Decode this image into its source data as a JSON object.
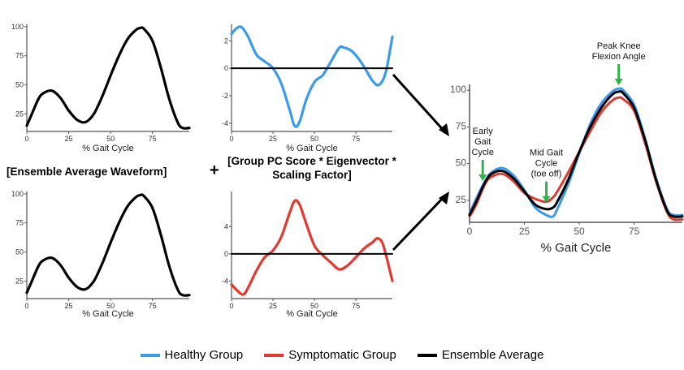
{
  "labels": {
    "ensemble_average": "[Ensemble Average Waveform]",
    "plus": "+",
    "group_pc_line1": "[Group PC Score * Eigenvector *",
    "group_pc_line2": "Scaling Factor]"
  },
  "colors": {
    "healthy": "#3a9bea",
    "symptomatic": "#e23a30",
    "ensemble": "#000000",
    "annotation_arrow": "#2db34a"
  },
  "annotations": [
    {
      "lines": [
        "Early",
        "Gait",
        "Cycle"
      ],
      "x": 6
    },
    {
      "lines": [
        "Mid Gait",
        "Cycle",
        "(toe off)"
      ],
      "x": 35
    },
    {
      "lines": [
        "Peak Knee",
        "Flexion Angle"
      ],
      "x": 68
    }
  ],
  "legend": [
    {
      "label": "Healthy Group",
      "color": "#3a9bea"
    },
    {
      "label": "Symptomatic Group",
      "color": "#e23a30"
    },
    {
      "label": "Ensemble Average",
      "color": "#000000"
    }
  ],
  "chart_data": [
    {
      "type": "line",
      "xlabel": "% Gait Cycle",
      "xticks": [
        0,
        25,
        50,
        75
      ],
      "yticks": [
        25,
        50,
        75,
        100
      ],
      "xlim": [
        0,
        97
      ],
      "ylim": [
        10,
        102
      ],
      "series": [
        {
          "color": "#000000",
          "x": [
            0,
            3,
            7,
            10,
            15,
            20,
            25,
            30,
            35,
            40,
            45,
            50,
            55,
            60,
            65,
            68,
            70,
            75,
            80,
            85,
            90,
            93,
            97
          ],
          "values": [
            15,
            25,
            38,
            43,
            45,
            39,
            28,
            20,
            18,
            25,
            40,
            58,
            75,
            89,
            97,
            99,
            98,
            88,
            65,
            38,
            18,
            13,
            13
          ]
        }
      ]
    },
    {
      "type": "line",
      "xlabel": "% Gait Cycle",
      "xticks": [
        0,
        25,
        50,
        75
      ],
      "yticks": [
        -4,
        -2,
        0,
        2
      ],
      "xlim": [
        0,
        97
      ],
      "ylim": [
        -4.6,
        3.2
      ],
      "series": [
        {
          "color": "#3a9bea",
          "x": [
            0,
            3,
            6,
            10,
            15,
            20,
            25,
            30,
            35,
            38,
            41,
            45,
            50,
            55,
            60,
            65,
            68,
            72,
            76,
            80,
            85,
            89,
            93,
            97
          ],
          "values": [
            2.5,
            2.9,
            3.0,
            2.3,
            1.0,
            0.5,
            0.0,
            -1.1,
            -3.0,
            -4.2,
            -3.9,
            -2.3,
            -1.0,
            -0.5,
            0.5,
            1.5,
            1.5,
            1.3,
            0.8,
            0.1,
            -0.9,
            -1.2,
            -0.3,
            2.3
          ]
        },
        {
          "color": "#000000",
          "x": [
            0,
            97
          ],
          "values": [
            0,
            0
          ]
        }
      ]
    },
    {
      "type": "line",
      "xlabel": "% Gait Cycle",
      "xticks": [
        0,
        25,
        50,
        75
      ],
      "yticks": [
        25,
        50,
        75,
        100
      ],
      "xlim": [
        0,
        97
      ],
      "ylim": [
        10,
        102
      ],
      "series": [
        {
          "color": "#000000",
          "x": [
            0,
            3,
            7,
            10,
            15,
            20,
            25,
            30,
            35,
            40,
            45,
            50,
            55,
            60,
            65,
            68,
            70,
            75,
            80,
            85,
            90,
            93,
            97
          ],
          "values": [
            15,
            25,
            38,
            43,
            45,
            39,
            28,
            20,
            18,
            25,
            40,
            58,
            75,
            89,
            97,
            99,
            98,
            88,
            65,
            38,
            18,
            13,
            13
          ]
        }
      ]
    },
    {
      "type": "line",
      "xlabel": "% Gait Cycle",
      "xticks": [
        0,
        25,
        50,
        75
      ],
      "yticks": [
        -4,
        0,
        4
      ],
      "xlim": [
        0,
        97
      ],
      "ylim": [
        -6.6,
        9.2
      ],
      "series": [
        {
          "color": "#e23a30",
          "x": [
            0,
            3,
            7,
            10,
            15,
            20,
            25,
            30,
            35,
            38,
            41,
            45,
            50,
            55,
            60,
            65,
            70,
            75,
            80,
            85,
            88,
            91,
            94,
            97
          ],
          "values": [
            -4.5,
            -5.3,
            -6.0,
            -5.0,
            -2.5,
            -0.5,
            0.5,
            2.5,
            6.0,
            7.8,
            7.3,
            4.5,
            1.2,
            -0.2,
            -1.3,
            -2.3,
            -1.7,
            -0.5,
            0.8,
            1.7,
            2.3,
            1.6,
            -1.0,
            -4.0
          ]
        },
        {
          "color": "#000000",
          "x": [
            0,
            97
          ],
          "values": [
            0,
            0
          ]
        }
      ]
    },
    {
      "type": "line",
      "xlabel": "% Gait Cycle",
      "xticks": [
        0,
        25,
        50,
        75
      ],
      "yticks": [
        25,
        50,
        75,
        100
      ],
      "xlim": [
        0,
        97
      ],
      "ylim": [
        10,
        104
      ],
      "series": [
        {
          "name": "Healthy Group",
          "color": "#3a9bea",
          "x": [
            0,
            3,
            7,
            10,
            15,
            20,
            25,
            30,
            35,
            38,
            40,
            45,
            50,
            55,
            60,
            65,
            68,
            70,
            75,
            80,
            85,
            90,
            93,
            97
          ],
          "values": [
            16,
            26,
            38,
            44,
            47,
            42,
            32,
            20,
            15,
            14,
            19,
            36,
            57,
            77,
            91,
            99,
            101,
            100,
            90,
            67,
            40,
            19,
            15,
            15
          ]
        },
        {
          "name": "Symptomatic Group",
          "color": "#e23a30",
          "x": [
            0,
            3,
            7,
            10,
            15,
            20,
            25,
            30,
            35,
            38,
            40,
            45,
            50,
            55,
            60,
            65,
            68,
            70,
            75,
            80,
            85,
            90,
            93,
            97
          ],
          "values": [
            14,
            22,
            36,
            41,
            43,
            38,
            30,
            26,
            24,
            27,
            31,
            44,
            58,
            72,
            85,
            93,
            95,
            94,
            86,
            64,
            38,
            17,
            12,
            12
          ]
        },
        {
          "name": "Ensemble Average",
          "color": "#000000",
          "x": [
            0,
            3,
            7,
            10,
            15,
            20,
            25,
            30,
            35,
            38,
            40,
            45,
            50,
            55,
            60,
            65,
            68,
            70,
            75,
            80,
            85,
            90,
            93,
            97
          ],
          "values": [
            15,
            24,
            37,
            43,
            45,
            40,
            31,
            22,
            19,
            20,
            24,
            39,
            58,
            75,
            88,
            97,
            99,
            98,
            88,
            66,
            39,
            18,
            14,
            14
          ]
        }
      ]
    }
  ]
}
